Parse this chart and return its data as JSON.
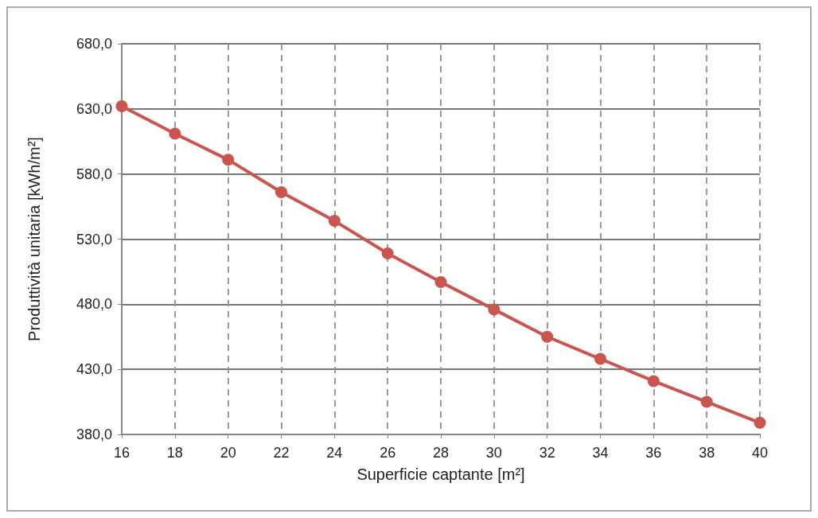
{
  "chart_data": {
    "type": "line",
    "xlabel": "Superficie captante [m²]",
    "ylabel": "Produttività unitaria [kWh/m²]",
    "x": [
      16,
      18,
      20,
      22,
      24,
      26,
      28,
      30,
      32,
      34,
      36,
      38,
      40
    ],
    "series": [
      {
        "color": "#c9554e",
        "values": [
          632,
          611,
          591,
          566,
          544,
          519,
          497,
          476,
          455,
          438,
          421,
          405,
          389
        ]
      }
    ],
    "xlim": [
      16,
      40
    ],
    "xticks": [
      16,
      18,
      20,
      22,
      24,
      26,
      28,
      30,
      32,
      34,
      36,
      38,
      40
    ],
    "ylim": [
      380,
      680
    ],
    "yticks": [
      {
        "value": 380,
        "label": "380,0"
      },
      {
        "value": 430,
        "label": "430,0"
      },
      {
        "value": 480,
        "label": "480,0"
      },
      {
        "value": 530,
        "label": "530,0"
      },
      {
        "value": 580,
        "label": "580,0"
      },
      {
        "value": 630,
        "label": "630,0"
      },
      {
        "value": 680,
        "label": "680,0"
      }
    ],
    "grid": true,
    "marker": "circle",
    "line_style": "solid"
  }
}
